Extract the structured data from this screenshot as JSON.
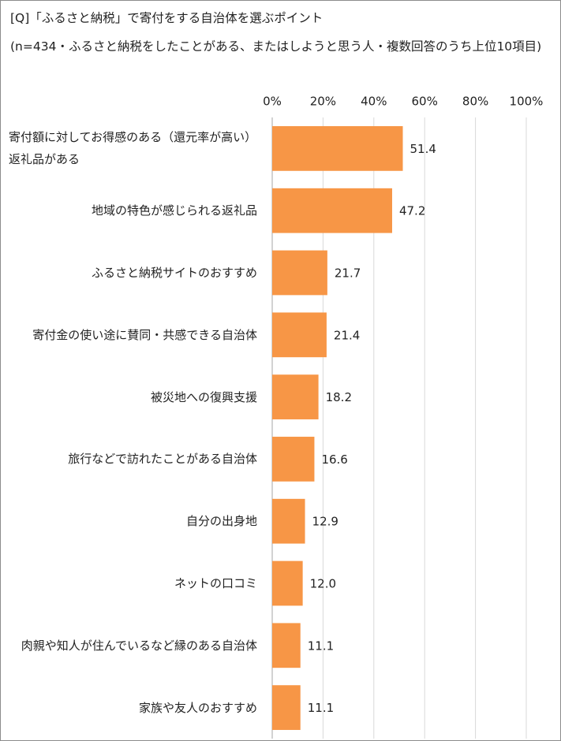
{
  "chart_data": {
    "type": "bar",
    "orientation": "horizontal",
    "title": "[Q]「ふるさと納税」で寄付をする自治体を選ぶポイント",
    "subtitle": "(n=434・ふるさと納税をしたことがある、またはしようと思う人・複数回答のうち上位10項目)",
    "categories": [
      "寄付額に対してお得感のある（還元率が高い）返礼品がある",
      "地域の特色が感じられる返礼品",
      "ふるさと納税サイトのおすすめ",
      "寄付金の使い途に賛同・共感できる自治体",
      "被災地への復興支援",
      "旅行などで訪れたことがある自治体",
      "自分の出身地",
      "ネットの口コミ",
      "肉親や知人が住んでいるなど縁のある自治体",
      "家族や友人のおすすめ"
    ],
    "values": [
      51.4,
      47.2,
      21.7,
      21.4,
      18.2,
      16.6,
      12.9,
      12.0,
      11.1,
      11.1
    ],
    "value_labels": [
      "51.4",
      "47.2",
      "21.7",
      "21.4",
      "18.2",
      "16.6",
      "12.9",
      "12.0",
      "11.1",
      "11.1"
    ],
    "color": "#f79646",
    "xlim": [
      0,
      100
    ],
    "xticks": [
      {
        "value": 0,
        "label": "0%"
      },
      {
        "value": 20,
        "label": "20%"
      },
      {
        "value": 40,
        "label": "40%"
      },
      {
        "value": 60,
        "label": "60%"
      },
      {
        "value": 80,
        "label": "80%"
      },
      {
        "value": 100,
        "label": "100%"
      }
    ],
    "grid": true
  }
}
